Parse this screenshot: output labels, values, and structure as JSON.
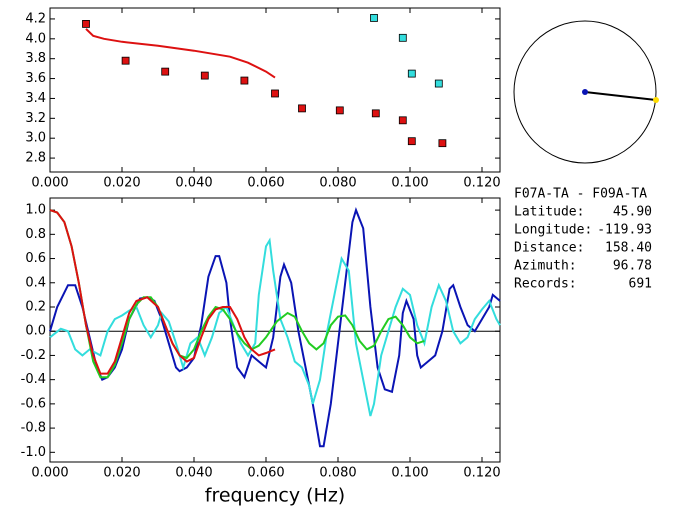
{
  "chart_data": [
    {
      "type": "scatter",
      "xlim": [
        0,
        0.125
      ],
      "ylim": [
        2.66,
        4.31
      ],
      "xticks": [
        {
          "value": 0,
          "label": "0.000"
        },
        {
          "value": 0.02,
          "label": "0.020"
        },
        {
          "value": 0.04,
          "label": "0.040"
        },
        {
          "value": 0.06,
          "label": "0.060"
        },
        {
          "value": 0.08,
          "label": "0.080"
        },
        {
          "value": 0.1,
          "label": "0.100"
        },
        {
          "value": 0.12,
          "label": "0.120"
        }
      ],
      "yticks": [
        {
          "value": 2.8,
          "label": "2.8"
        },
        {
          "value": 3,
          "label": "3.0"
        },
        {
          "value": 3.2,
          "label": "3.2"
        },
        {
          "value": 3.4,
          "label": "3.4"
        },
        {
          "value": 3.6,
          "label": "3.6"
        },
        {
          "value": 3.8,
          "label": "3.8"
        },
        {
          "value": 4,
          "label": "4.0"
        },
        {
          "value": 4.2,
          "label": "4.2"
        }
      ],
      "series": [
        {
          "mode": "markers",
          "color": "#dd1111",
          "x": [
            0.01,
            0.021,
            0.032,
            0.043,
            0.054,
            0.0625,
            0.07,
            0.0805,
            0.0905,
            0.098,
            0.1005,
            0.109
          ],
          "values": [
            4.15,
            3.78,
            3.67,
            3.63,
            3.58,
            3.45,
            3.3,
            3.28,
            3.25,
            3.18,
            2.97,
            2.95
          ]
        },
        {
          "mode": "markers",
          "color": "#33dddd",
          "x": [
            0.09,
            0.098,
            0.1005,
            0.108
          ],
          "values": [
            4.21,
            4.01,
            3.65,
            3.55
          ]
        },
        {
          "mode": "line",
          "color": "#dd1111",
          "x": [
            0.01,
            0.012,
            0.015,
            0.02,
            0.03,
            0.04,
            0.05,
            0.055,
            0.06,
            0.0625
          ],
          "values": [
            4.1,
            4.03,
            4.0,
            3.97,
            3.93,
            3.88,
            3.82,
            3.76,
            3.67,
            3.61
          ]
        }
      ]
    },
    {
      "type": "line",
      "xlabel": "frequency (Hz)",
      "xlim": [
        0,
        0.125
      ],
      "ylim": [
        -1.08,
        1.1
      ],
      "zero_line": true,
      "xticks": [
        {
          "value": 0,
          "label": "0.000"
        },
        {
          "value": 0.02,
          "label": "0.020"
        },
        {
          "value": 0.04,
          "label": "0.040"
        },
        {
          "value": 0.06,
          "label": "0.060"
        },
        {
          "value": 0.08,
          "label": "0.080"
        },
        {
          "value": 0.1,
          "label": "0.100"
        },
        {
          "value": 0.12,
          "label": "0.120"
        }
      ],
      "yticks": [
        {
          "value": -1,
          "label": "-1.0"
        },
        -0.8,
        -0.6,
        -0.4,
        -0.2,
        {
          "value": 0,
          "label": "0.0"
        },
        0.2,
        0.4,
        0.6,
        0.8,
        {
          "value": 1,
          "label": "1.0"
        }
      ],
      "series": [
        {
          "color": "#0a14b4",
          "x": [
            0,
            0.002,
            0.005,
            0.007,
            0.009,
            0.011,
            0.013,
            0.0145,
            0.016,
            0.018,
            0.02,
            0.022,
            0.025,
            0.027,
            0.029,
            0.031,
            0.033,
            0.035,
            0.036,
            0.038,
            0.04,
            0.042,
            0.044,
            0.046,
            0.047,
            0.049,
            0.05,
            0.052,
            0.054,
            0.056,
            0.058,
            0.06,
            0.062,
            0.064,
            0.065,
            0.067,
            0.069,
            0.071,
            0.073,
            0.075,
            0.076,
            0.078,
            0.08,
            0.082,
            0.084,
            0.085,
            0.087,
            0.089,
            0.091,
            0.093,
            0.095,
            0.097,
            0.098,
            0.099,
            0.101,
            0.102,
            0.103,
            0.105,
            0.107,
            0.109,
            0.111,
            0.112,
            0.114,
            0.116,
            0.118,
            0.12,
            0.122,
            0.123,
            0.125
          ],
          "values": [
            0,
            0.2,
            0.38,
            0.38,
            0.2,
            -0.05,
            -0.3,
            -0.4,
            -0.38,
            -0.3,
            -0.15,
            0.1,
            0.27,
            0.28,
            0.25,
            0.1,
            -0.1,
            -0.3,
            -0.33,
            -0.3,
            -0.22,
            0.05,
            0.45,
            0.62,
            0.62,
            0.4,
            0.1,
            -0.3,
            -0.38,
            -0.2,
            -0.25,
            -0.3,
            -0.05,
            0.45,
            0.55,
            0.4,
            0,
            -0.3,
            -0.6,
            -0.95,
            -0.95,
            -0.6,
            -0.1,
            0.4,
            0.9,
            1.0,
            0.85,
            0.2,
            -0.3,
            -0.48,
            -0.5,
            -0.2,
            0.15,
            0.25,
            0.1,
            -0.2,
            -0.3,
            -0.25,
            -0.2,
            0,
            0.35,
            0.38,
            0.2,
            0.05,
            0,
            0.1,
            0.2,
            0.3,
            0.25
          ]
        },
        {
          "color": "#33dddd",
          "x": [
            0,
            0.003,
            0.005,
            0.007,
            0.009,
            0.011,
            0.014,
            0.016,
            0.018,
            0.02,
            0.022,
            0.024,
            0.026,
            0.028,
            0.03,
            0.031,
            0.033,
            0.035,
            0.037,
            0.039,
            0.041,
            0.043,
            0.045,
            0.047,
            0.049,
            0.051,
            0.053,
            0.055,
            0.057,
            0.058,
            0.06,
            0.061,
            0.062,
            0.064,
            0.066,
            0.068,
            0.07,
            0.072,
            0.073,
            0.075,
            0.077,
            0.079,
            0.08,
            0.081,
            0.083,
            0.085,
            0.087,
            0.089,
            0.09,
            0.092,
            0.094,
            0.096,
            0.098,
            0.1,
            0.102,
            0.104,
            0.106,
            0.108,
            0.11,
            0.112,
            0.114,
            0.116,
            0.118,
            0.12,
            0.122,
            0.124,
            0.125
          ],
          "values": [
            -0.05,
            0.02,
            0,
            -0.15,
            -0.2,
            -0.15,
            -0.2,
            0,
            0.1,
            0.13,
            0.17,
            0.2,
            0.05,
            -0.05,
            0.05,
            0.15,
            0.08,
            -0.1,
            -0.3,
            -0.1,
            -0.05,
            -0.2,
            -0.05,
            0.15,
            0.2,
            0.05,
            -0.1,
            -0.2,
            -0.1,
            0.3,
            0.7,
            0.75,
            0.5,
            0.1,
            -0.05,
            -0.25,
            -0.3,
            -0.45,
            -0.6,
            -0.4,
            0,
            0.3,
            0.45,
            0.6,
            0.5,
            -0.1,
            -0.4,
            -0.7,
            -0.6,
            -0.2,
            0,
            0.2,
            0.35,
            0.3,
            0.05,
            -0.1,
            0.2,
            0.38,
            0.25,
            0,
            -0.1,
            -0.05,
            0.1,
            0.18,
            0.25,
            0.1,
            0.05
          ]
        },
        {
          "color": "#22cc22",
          "x": [
            0,
            0.002,
            0.004,
            0.006,
            0.008,
            0.01,
            0.012,
            0.014,
            0.016,
            0.018,
            0.02,
            0.022,
            0.024,
            0.026,
            0.028,
            0.03,
            0.032,
            0.034,
            0.036,
            0.038,
            0.04,
            0.042,
            0.044,
            0.046,
            0.048,
            0.05,
            0.052,
            0.054,
            0.056,
            0.058,
            0.06,
            0.063,
            0.066,
            0.068,
            0.07,
            0.072,
            0.074,
            0.076,
            0.078,
            0.08,
            0.082,
            0.084,
            0.086,
            0.088,
            0.09,
            0.092,
            0.094,
            0.096,
            0.098,
            0.1,
            0.102,
            0.104
          ],
          "values": [
            1.0,
            0.98,
            0.9,
            0.7,
            0.4,
            0.05,
            -0.25,
            -0.38,
            -0.38,
            -0.28,
            -0.1,
            0.1,
            0.22,
            0.28,
            0.28,
            0.2,
            0.05,
            -0.1,
            -0.2,
            -0.22,
            -0.15,
            0,
            0.12,
            0.2,
            0.18,
            0.1,
            -0.02,
            -0.1,
            -0.15,
            -0.12,
            -0.05,
            0.08,
            0.15,
            0.12,
            0,
            -0.1,
            -0.15,
            -0.1,
            0.05,
            0.12,
            0.13,
            0.05,
            -0.08,
            -0.15,
            -0.12,
            0,
            0.1,
            0.12,
            0.05,
            -0.05,
            -0.1,
            -0.08
          ]
        },
        {
          "color": "#dd1111",
          "x": [
            0,
            0.002,
            0.004,
            0.006,
            0.008,
            0.01,
            0.012,
            0.014,
            0.016,
            0.018,
            0.02,
            0.022,
            0.024,
            0.027,
            0.03,
            0.032,
            0.034,
            0.036,
            0.038,
            0.04,
            0.042,
            0.044,
            0.046,
            0.048,
            0.05,
            0.052,
            0.054,
            0.056,
            0.058,
            0.06,
            0.0625
          ],
          "values": [
            1.0,
            0.98,
            0.9,
            0.7,
            0.4,
            0.05,
            -0.2,
            -0.35,
            -0.35,
            -0.25,
            -0.05,
            0.15,
            0.25,
            0.28,
            0.2,
            0.05,
            -0.1,
            -0.2,
            -0.25,
            -0.22,
            -0.05,
            0.1,
            0.18,
            0.2,
            0.2,
            0.1,
            -0.05,
            -0.15,
            -0.2,
            -0.18,
            -0.15
          ]
        }
      ]
    }
  ],
  "station_info": {
    "title": "F07A-TA  -  F09A-TA",
    "rows": [
      [
        "Latitude:",
        "45.90"
      ],
      [
        "Longitude:",
        "-119.93"
      ],
      [
        "Distance:",
        "158.40"
      ],
      [
        "Azimuth:",
        "96.78"
      ],
      [
        "Records:",
        "691"
      ]
    ]
  }
}
